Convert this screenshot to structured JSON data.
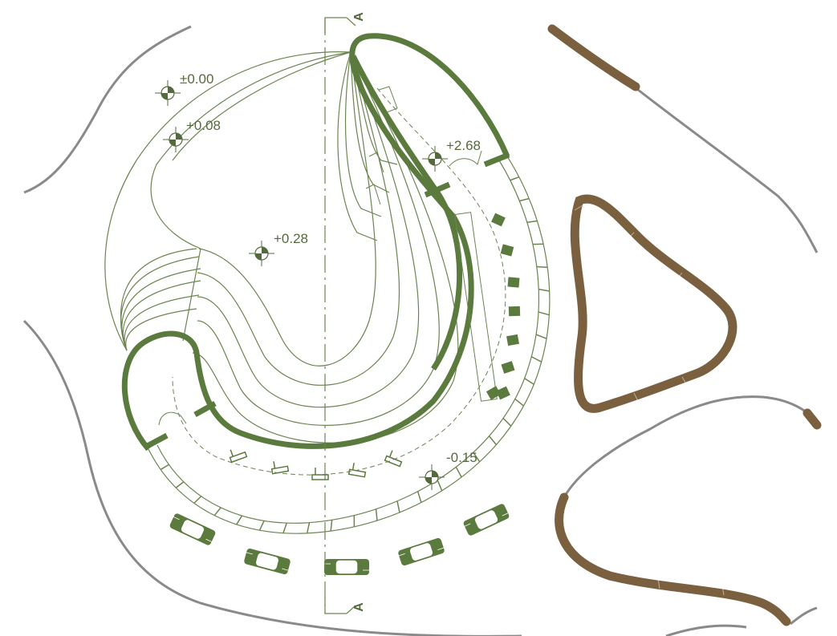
{
  "drawing": {
    "section_marker": "A",
    "elevations": [
      {
        "id": "level-0",
        "text": "±0.00"
      },
      {
        "id": "level-1",
        "text": "+0.08"
      },
      {
        "id": "level-2",
        "text": "+0.28"
      },
      {
        "id": "level-3",
        "text": "+2.68"
      },
      {
        "id": "level-4",
        "text": "-0.15"
      }
    ]
  },
  "colors": {
    "wall_green": "#5b7a3d",
    "line_green": "#6b8450",
    "label_green": "#556a3c",
    "hedge_brown": "#7b6040",
    "contour_gray": "#8a8a8a",
    "paper": "#ffffff"
  }
}
